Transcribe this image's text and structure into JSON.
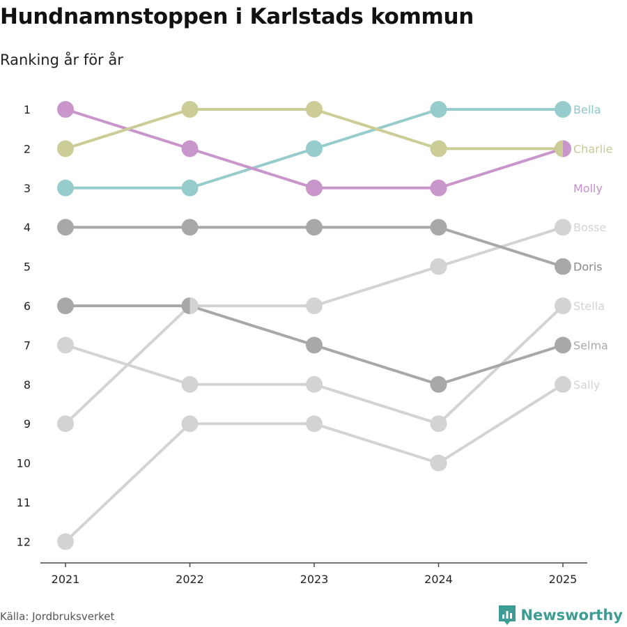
{
  "title": "Hundnamnstoppen i Karlstads kommun",
  "subtitle": "Ranking år för år",
  "source": "Källa: Jordbruksverket",
  "brand": "Newsworthy",
  "brand_color": "#3d9c94",
  "chart_data": {
    "type": "line",
    "title": "Hundnamnstoppen i Karlstads kommun",
    "subtitle": "Ranking år för år",
    "xlabel": "",
    "ylabel": "",
    "x": [
      "2021",
      "2022",
      "2023",
      "2024",
      "2025"
    ],
    "y_ticks": [
      "1",
      "2",
      "3",
      "4",
      "5",
      "6",
      "7",
      "8",
      "9",
      "10",
      "11",
      "12"
    ],
    "ylim": [
      1,
      12
    ],
    "y_inverted": true,
    "series": [
      {
        "name": "Bosse",
        "values": [
          9,
          6,
          6,
          5,
          4
        ],
        "color": "#d3d3d3",
        "label_color": "#d3d3d3"
      },
      {
        "name": "Sally",
        "values": [
          12,
          9,
          9,
          10,
          8
        ],
        "color": "#d3d3d3",
        "label_color": "#d3d3d3"
      },
      {
        "name": "Stella",
        "values": [
          7,
          8,
          8,
          9,
          6
        ],
        "color": "#d3d3d3",
        "label_color": "#d3d3d3"
      },
      {
        "name": "Selma",
        "values": [
          6,
          6,
          7,
          8,
          7
        ],
        "color": "#a8a8a8",
        "label_color": "#a8a8a8"
      },
      {
        "name": "Doris",
        "values": [
          4,
          4,
          4,
          4,
          5
        ],
        "color": "#a8a8a8",
        "label_color": "#888888"
      },
      {
        "name": "Bella",
        "values": [
          3,
          3,
          2,
          1,
          1
        ],
        "color": "#96cccc",
        "label_color": "#8cc8c8"
      },
      {
        "name": "Molly",
        "values": [
          1,
          2,
          3,
          3,
          2
        ],
        "color": "#c996cc",
        "label_color": "#c38fcb"
      },
      {
        "name": "Charlie",
        "values": [
          2,
          1,
          1,
          2,
          2
        ],
        "color": "#cccc96",
        "label_color": "#c8c896"
      }
    ]
  }
}
